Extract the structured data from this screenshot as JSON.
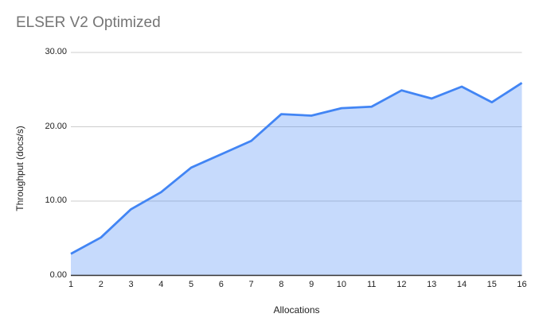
{
  "title": "ELSER V2 Optimized",
  "chart_data": {
    "type": "area",
    "title": "ELSER V2 Optimized",
    "xlabel": "Allocations",
    "ylabel": "Throughput (docs/s)",
    "x": [
      1,
      2,
      3,
      4,
      5,
      6,
      7,
      8,
      9,
      10,
      11,
      12,
      13,
      14,
      15,
      16
    ],
    "values": [
      2.9,
      5.1,
      8.9,
      11.2,
      14.5,
      16.3,
      18.1,
      21.7,
      21.5,
      22.5,
      22.7,
      24.9,
      23.8,
      25.4,
      23.3,
      25.9
    ],
    "series_label": "Throughput (docs/s)",
    "xlim": [
      1,
      16
    ],
    "ylim": [
      0,
      30
    ],
    "xtick_labels": [
      "1",
      "2",
      "3",
      "4",
      "5",
      "6",
      "7",
      "8",
      "9",
      "10",
      "11",
      "12",
      "13",
      "14",
      "15",
      "16"
    ],
    "ytick_values": [
      0,
      10,
      20,
      30
    ],
    "ytick_labels": [
      "0.00",
      "10.00",
      "20.00",
      "30.00"
    ],
    "grid": true,
    "legend": "none",
    "colors": {
      "line": "#4285f4",
      "fill": "rgba(66,133,244,0.3)",
      "grid": "#cccccc",
      "axis": "#333333",
      "title": "#757575",
      "tick": "#222222",
      "background": "#ffffff"
    }
  }
}
